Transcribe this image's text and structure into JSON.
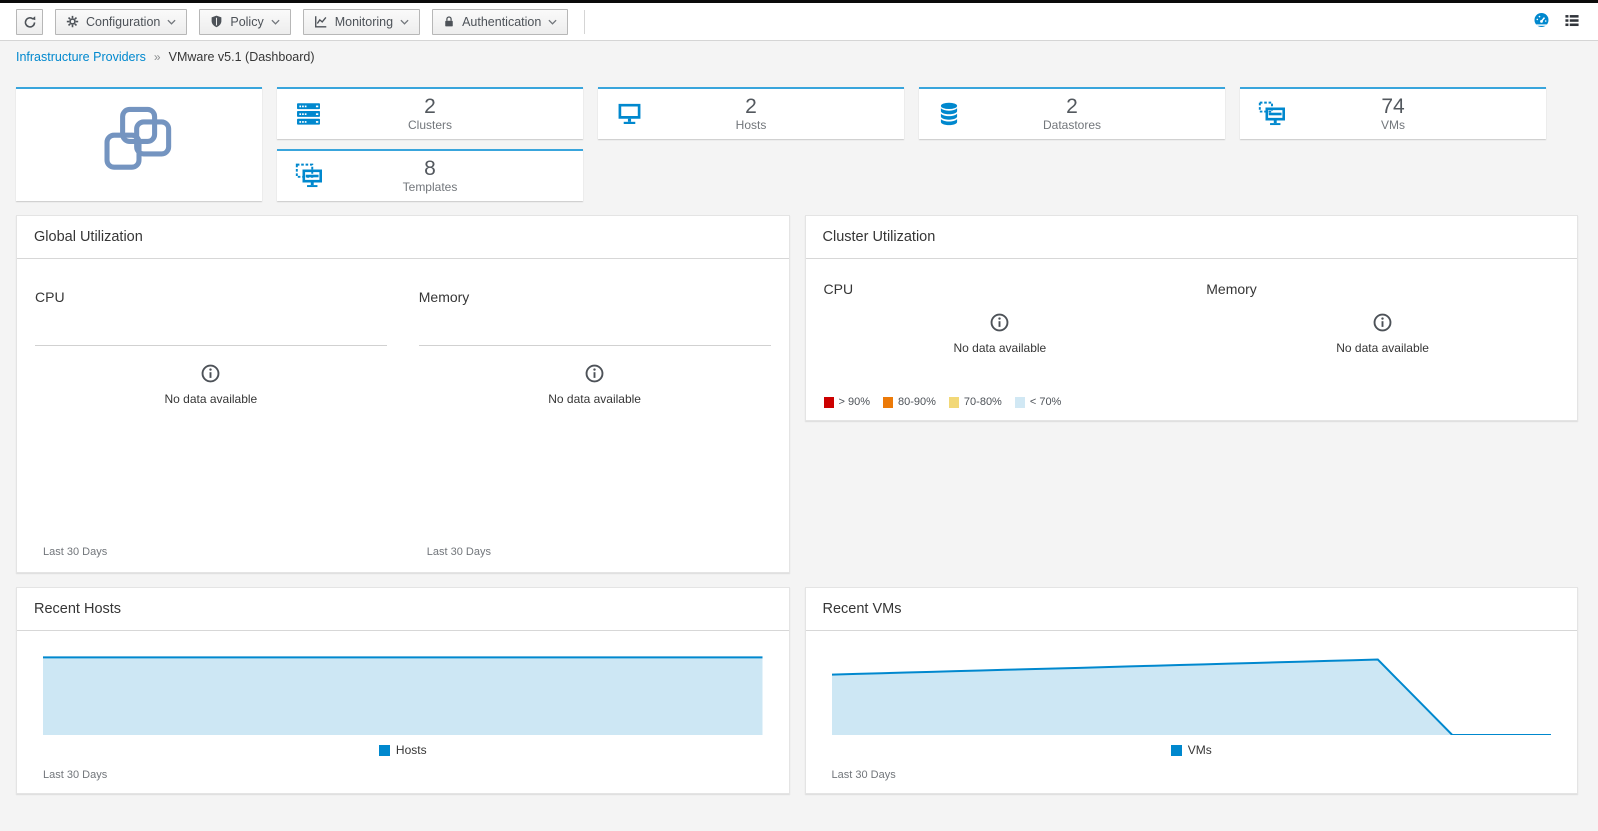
{
  "toolbar": {
    "refresh": {
      "icon": "refresh-icon"
    },
    "groups": [
      {
        "label": "Configuration",
        "icon": "gear-icon"
      },
      {
        "label": "Policy",
        "icon": "shield-icon"
      },
      {
        "label": "Monitoring",
        "icon": "chart-line-icon"
      },
      {
        "label": "Authentication",
        "icon": "lock-icon"
      }
    ],
    "view_toggle": [
      {
        "name": "dashboard-view",
        "icon": "dashboard-gauge-icon",
        "active_color": "#0088ce"
      },
      {
        "name": "summary-view",
        "icon": "list-view-icon",
        "color": "#30343a"
      }
    ]
  },
  "breadcrumb": {
    "parent": "Infrastructure Providers",
    "separator": "»",
    "current": "VMware v5.1 (Dashboard)"
  },
  "provider": {
    "logo": "vmware-vsphere-logo",
    "logo_color": "#7494c0"
  },
  "summary_cards": [
    {
      "id": "clusters",
      "value": "2",
      "label": "Clusters",
      "icon": "cluster-icon"
    },
    {
      "id": "hosts",
      "value": "2",
      "label": "Hosts",
      "icon": "monitor-icon"
    },
    {
      "id": "datastores",
      "value": "2",
      "label": "Datastores",
      "icon": "database-icon"
    },
    {
      "id": "vms",
      "value": "74",
      "label": "VMs",
      "icon": "virtual-machine-icon"
    },
    {
      "id": "templates",
      "value": "8",
      "label": "Templates",
      "icon": "template-icon"
    }
  ],
  "strings": {
    "cpu": "CPU",
    "memory": "Memory",
    "no_data": "No data available",
    "last_30_days": "Last 30 Days"
  },
  "panels": {
    "global_utilization": {
      "title": "Global Utilization"
    },
    "cluster_utilization": {
      "title": "Cluster Utilization",
      "legend": [
        {
          "label": "> 90%",
          "color": "#cc0000"
        },
        {
          "label": "80-90%",
          "color": "#ec7a08"
        },
        {
          "label": "70-80%",
          "color": "#f2d877"
        },
        {
          "label": "< 70%",
          "color": "#d1e8f4"
        }
      ]
    },
    "recent_hosts": {
      "title": "Recent Hosts"
    },
    "recent_vms": {
      "title": "Recent VMs"
    }
  },
  "colors": {
    "accent_blue": "#0088ce",
    "card_top_border": "#39a5dc",
    "chart_line": "#0088ce",
    "chart_fill": "#cde7f4"
  },
  "chart_data": [
    {
      "id": "recent_hosts",
      "type": "area",
      "title": "Recent Hosts",
      "xlabel": "Last 30 Days",
      "legend": [
        "Hosts"
      ],
      "grid": false,
      "ylim": [
        0,
        2.06
      ],
      "line_color": "#0088ce",
      "fill_color": "#cde7f4",
      "series": [
        {
          "name": "Hosts",
          "values": [
            2,
            2,
            2,
            2,
            2,
            2,
            2,
            2,
            2,
            2,
            2,
            2,
            2,
            2,
            2,
            2,
            2,
            2,
            2,
            2,
            2,
            2,
            2,
            2,
            2,
            2,
            2,
            2,
            2,
            2
          ]
        }
      ]
    },
    {
      "id": "recent_vms",
      "type": "area",
      "title": "Recent VMs",
      "xlabel": "Last 30 Days",
      "legend": [
        "VMs"
      ],
      "grid": false,
      "ylim": [
        74,
        79.3
      ],
      "line_color": "#0088ce",
      "fill_color": "#cde7f4",
      "series": [
        {
          "name": "VMs",
          "values": [
            78,
            78.05,
            78.09,
            78.14,
            78.18,
            78.23,
            78.27,
            78.32,
            78.36,
            78.41,
            78.45,
            78.5,
            78.55,
            78.59,
            78.64,
            78.68,
            78.73,
            78.77,
            78.82,
            78.86,
            78.91,
            78.95,
            79,
            77.33,
            75.67,
            74,
            74,
            74,
            74,
            74
          ]
        }
      ]
    }
  ]
}
